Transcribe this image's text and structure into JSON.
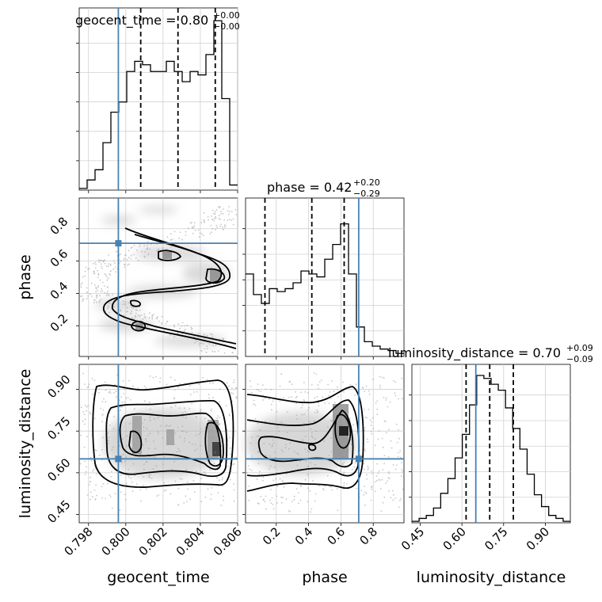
{
  "chart_data": {
    "type": "corner",
    "parameters": [
      "geocent_time",
      "phase",
      "luminosity_distance"
    ],
    "titles": {
      "geocent_time": {
        "name": "geocent_time",
        "value": "0.80",
        "plus": "+0.00",
        "minus": "−0.00"
      },
      "phase": {
        "name": "phase",
        "value": "0.42",
        "plus": "+0.20",
        "minus": "−0.29"
      },
      "luminosity_distance": {
        "name": "luminosity_distance",
        "value": "0.70",
        "plus": "+0.09",
        "minus": "−0.09"
      }
    },
    "axis_labels": {
      "geocent_time": "geocent_time",
      "phase": "phase",
      "luminosity_distance": "luminosity_distance"
    },
    "ranges": {
      "geocent_time": [
        0.7975,
        0.806
      ],
      "phase": [
        0.01,
        0.99
      ],
      "luminosity_distance": [
        0.42,
        0.99
      ]
    },
    "ticks": {
      "geocent_time": [
        {
          "v": 0.798,
          "label": "0.798"
        },
        {
          "v": 0.8,
          "label": "0.800"
        },
        {
          "v": 0.802,
          "label": "0.802"
        },
        {
          "v": 0.804,
          "label": "0.804"
        },
        {
          "v": 0.806,
          "label": "0.806"
        }
      ],
      "phase": [
        {
          "v": 0.2,
          "label": "0.2"
        },
        {
          "v": 0.4,
          "label": "0.4"
        },
        {
          "v": 0.6,
          "label": "0.6"
        },
        {
          "v": 0.8,
          "label": "0.8"
        }
      ],
      "luminosity_distance": [
        {
          "v": 0.45,
          "label": "0.45"
        },
        {
          "v": 0.6,
          "label": "0.60"
        },
        {
          "v": 0.75,
          "label": "0.75"
        },
        {
          "v": 0.9,
          "label": "0.90"
        }
      ]
    },
    "truths": {
      "geocent_time": 0.7996,
      "phase": 0.71,
      "luminosity_distance": 0.65
    },
    "quantiles": {
      "geocent_time": [
        0.8008,
        0.8028,
        0.8048
      ],
      "phase": [
        0.13,
        0.42,
        0.62
      ],
      "luminosity_distance": [
        0.615,
        0.7,
        0.785
      ]
    },
    "histograms": {
      "geocent_time": {
        "range": [
          0.7975,
          0.806
        ],
        "counts": [
          0.01,
          0.06,
          0.12,
          0.28,
          0.46,
          0.52,
          0.7,
          0.76,
          0.74,
          0.7,
          0.7,
          0.76,
          0.7,
          0.64,
          0.7,
          0.68,
          0.8,
          1.0,
          0.54,
          0.03
        ]
      },
      "phase": {
        "range": [
          0.01,
          0.99
        ],
        "counts": [
          0.56,
          0.42,
          0.36,
          0.46,
          0.44,
          0.46,
          0.5,
          0.58,
          0.56,
          0.54,
          0.66,
          0.76,
          0.9,
          0.56,
          0.2,
          0.1,
          0.07,
          0.05,
          0.04,
          0.02
        ]
      },
      "luminosity_distance": {
        "range": [
          0.42,
          0.99
        ],
        "counts": [
          0.01,
          0.03,
          0.05,
          0.1,
          0.2,
          0.3,
          0.44,
          0.6,
          0.8,
          1.0,
          0.98,
          0.94,
          0.9,
          0.78,
          0.64,
          0.5,
          0.33,
          0.19,
          0.11,
          0.05,
          0.03,
          0.01
        ]
      }
    },
    "grid": true
  }
}
